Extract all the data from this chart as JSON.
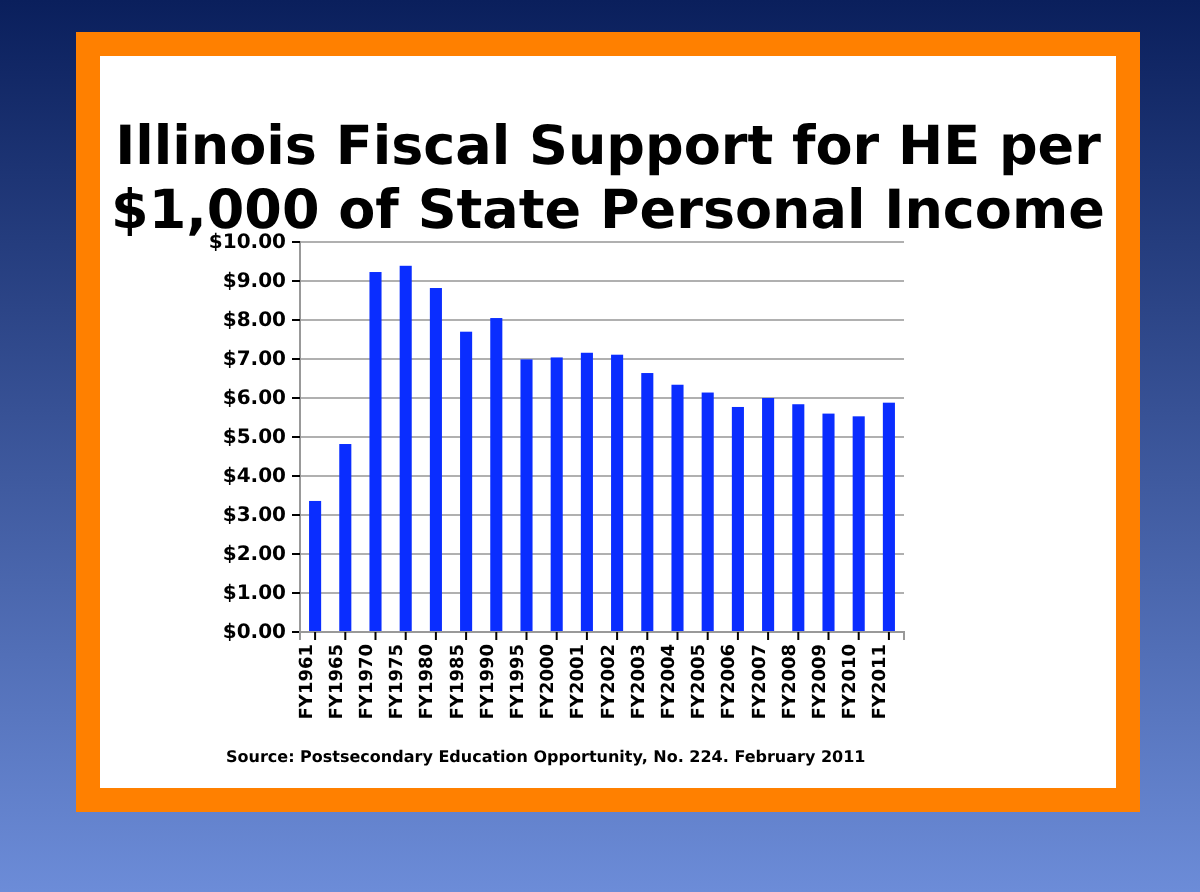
{
  "chart_data": {
    "type": "bar",
    "title": "Illinois Fiscal Support for HE per $1,000 of State Personal Income",
    "categories": [
      "FY1961",
      "FY1965",
      "FY1970",
      "FY1975",
      "FY1980",
      "FY1985",
      "FY1990",
      "FY1995",
      "FY2000",
      "FY2001",
      "FY2002",
      "FY2003",
      "FY2004",
      "FY2005",
      "FY2006",
      "FY2007",
      "FY2008",
      "FY2009",
      "FY2010",
      "FY2011"
    ],
    "values": [
      3.36,
      4.82,
      9.23,
      9.39,
      8.82,
      7.7,
      8.05,
      6.99,
      7.04,
      7.16,
      7.11,
      6.64,
      6.34,
      6.14,
      5.77,
      6.0,
      5.84,
      5.6,
      5.53,
      5.88
    ],
    "color": "#0a2dff",
    "ylim": [
      0,
      10
    ],
    "yticks": [
      {
        "value": 0,
        "label": "$0.00"
      },
      {
        "value": 1,
        "label": "$1.00"
      },
      {
        "value": 2,
        "label": "$2.00"
      },
      {
        "value": 3,
        "label": "$3.00"
      },
      {
        "value": 4,
        "label": "$4.00"
      },
      {
        "value": 5,
        "label": "$5.00"
      },
      {
        "value": 6,
        "label": "$6.00"
      },
      {
        "value": 7,
        "label": "$7.00"
      },
      {
        "value": 8,
        "label": "$8.00"
      },
      {
        "value": 9,
        "label": "$9.00"
      },
      {
        "value": 10,
        "label": "$10.00"
      }
    ],
    "grid": "y",
    "annotations": [
      "Source:  Postsecondary Education Opportunity, No. 224.  February 2011"
    ]
  }
}
